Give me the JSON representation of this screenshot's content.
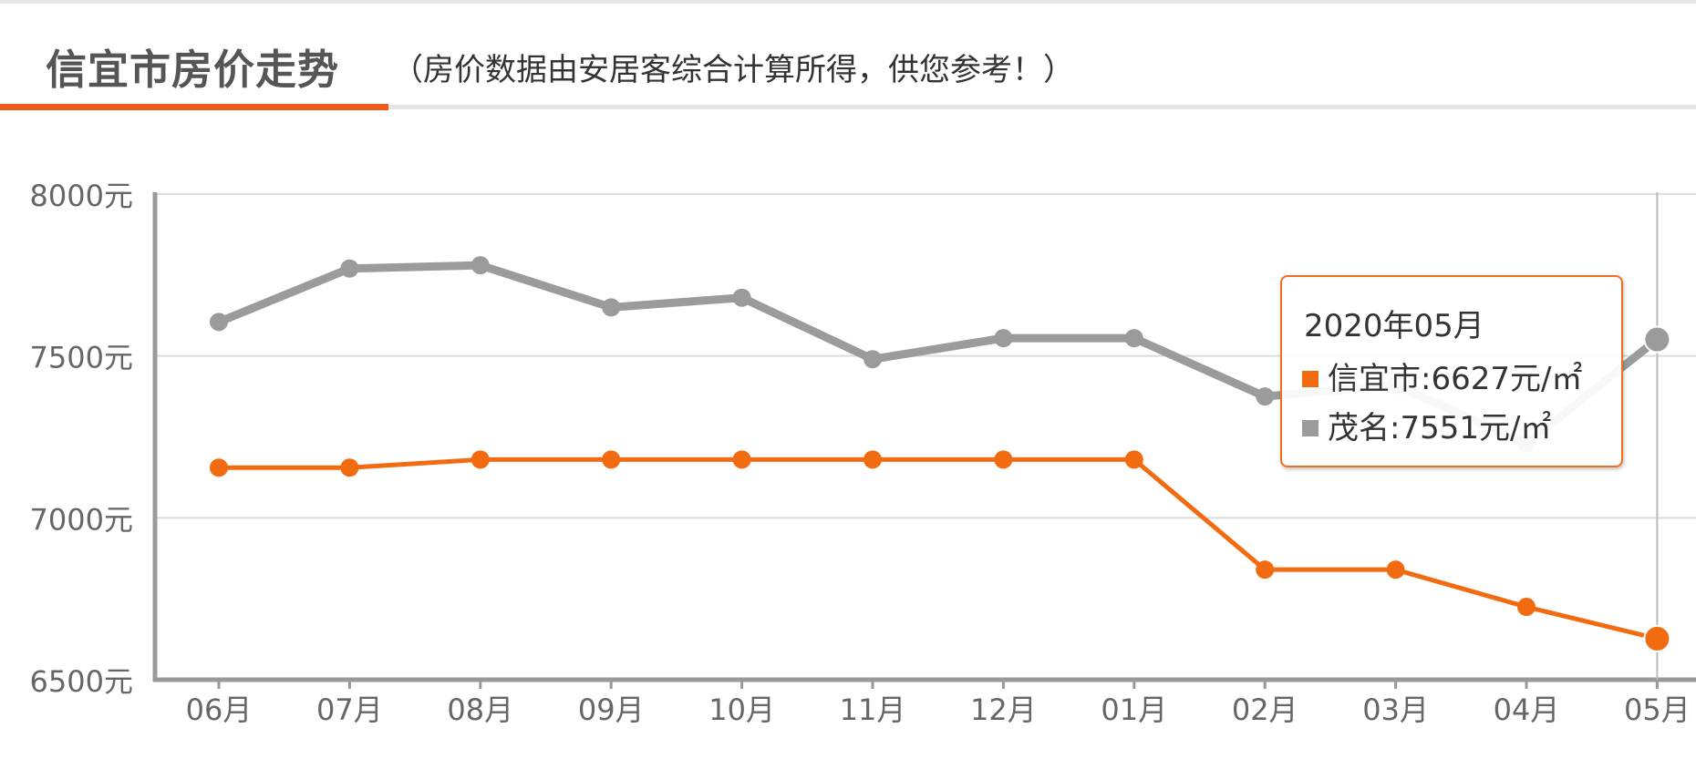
{
  "header": {
    "title": "信宜市房价走势",
    "subtitle": "（房价数据由安居客综合计算所得，供您参考！）"
  },
  "colors": {
    "series_primary": "#f26b10",
    "series_secondary": "#9b9b9b",
    "accent": "#f05a1a"
  },
  "tooltip": {
    "title": "2020年05月",
    "rows": [
      {
        "label": "信宜市:6627元/㎡",
        "color": "#f26b10"
      },
      {
        "label": "茂名:7551元/㎡",
        "color": "#9b9b9b"
      }
    ]
  },
  "chart_data": {
    "type": "line",
    "categories": [
      "06月",
      "07月",
      "08月",
      "09月",
      "10月",
      "11月",
      "12月",
      "01月",
      "02月",
      "03月",
      "04月",
      "05月"
    ],
    "series": [
      {
        "name": "信宜市",
        "color": "#f26b10",
        "values": [
          7155,
          7155,
          7180,
          7180,
          7180,
          7180,
          7180,
          7180,
          6840,
          6840,
          6725,
          6627
        ]
      },
      {
        "name": "茂名",
        "color": "#9b9b9b",
        "values": [
          7605,
          7770,
          7780,
          7650,
          7680,
          7490,
          7555,
          7555,
          7375,
          7410,
          7230,
          7551
        ]
      }
    ],
    "ylim": [
      6500,
      8000
    ],
    "yticks": [
      "6500元",
      "7000元",
      "7500元",
      "8000元"
    ],
    "ytick_values": [
      6500,
      7000,
      7500,
      8000
    ],
    "grid": true,
    "highlight_category": "05月"
  }
}
